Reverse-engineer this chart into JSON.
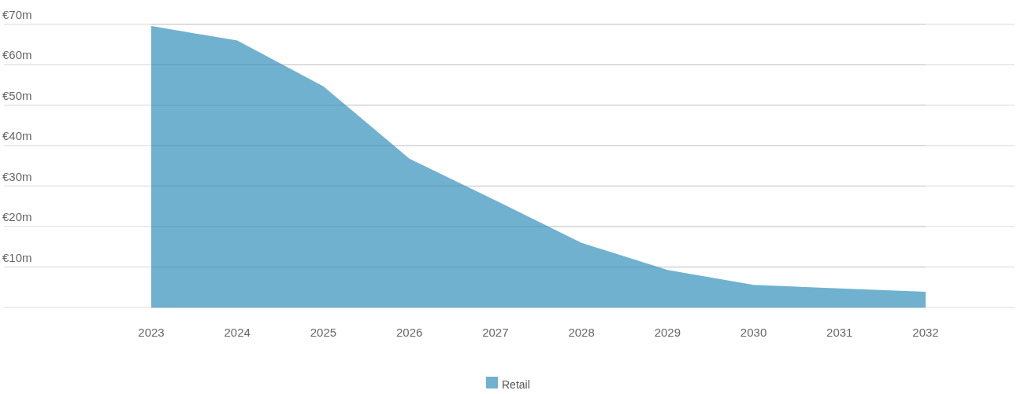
{
  "chart_data": {
    "type": "area",
    "categories": [
      "2023",
      "2024",
      "2025",
      "2026",
      "2027",
      "2028",
      "2029",
      "2030",
      "2031",
      "2032"
    ],
    "series": [
      {
        "name": "Retail",
        "color": "#70b1d0",
        "values": [
          69.6,
          66,
          54.7,
          36.8,
          26.5,
          16,
          9.3,
          5.6,
          4.7,
          3.9
        ]
      }
    ],
    "ylim": [
      0,
      70
    ],
    "yticks": [
      {
        "value": 0,
        "label": null
      },
      {
        "value": 10,
        "label": "€10m"
      },
      {
        "value": 20,
        "label": "€20m"
      },
      {
        "value": 30,
        "label": "€30m"
      },
      {
        "value": 40,
        "label": "€40m"
      },
      {
        "value": 50,
        "label": "€50m"
      },
      {
        "value": 60,
        "label": "€60m"
      },
      {
        "value": 70,
        "label": "€70m"
      }
    ],
    "grid": "y",
    "legend": "bottom"
  }
}
